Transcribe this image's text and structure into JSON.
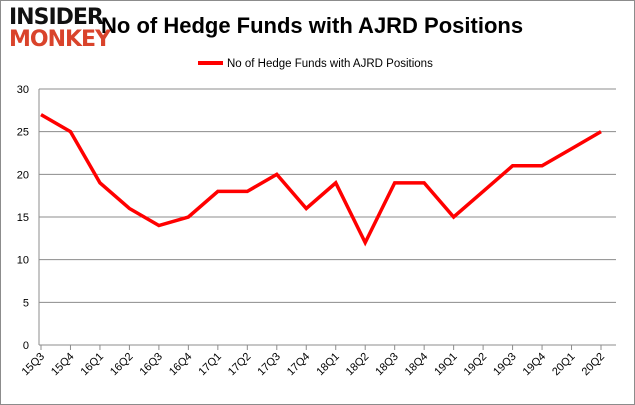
{
  "logo": {
    "line1": "INSIDER",
    "line2": "MONKEY"
  },
  "chart_data": {
    "type": "line",
    "title": "No of Hedge Funds with AJRD Positions",
    "categories": [
      "15Q3",
      "15Q4",
      "16Q1",
      "16Q2",
      "16Q3",
      "16Q4",
      "17Q1",
      "17Q2",
      "17Q3",
      "17Q4",
      "18Q1",
      "18Q2",
      "18Q3",
      "18Q4",
      "19Q1",
      "19Q2",
      "19Q3",
      "19Q4",
      "20Q1",
      "20Q2"
    ],
    "series": [
      {
        "name": "No of Hedge Funds with AJRD Positions",
        "values": [
          27,
          25,
          19,
          16,
          14,
          15,
          18,
          18,
          20,
          16,
          19,
          12,
          19,
          19,
          15,
          18,
          21,
          21,
          23,
          25
        ],
        "color": "#ff0000"
      }
    ],
    "ylim": [
      0,
      30
    ],
    "yticks": [
      0,
      5,
      10,
      15,
      20,
      25,
      30
    ],
    "grid": true,
    "legend": "top-center"
  }
}
